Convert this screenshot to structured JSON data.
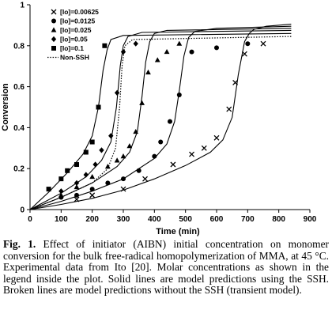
{
  "chart_data": {
    "type": "scatter",
    "title": "",
    "xlabel": "Time (min)",
    "ylabel": "Conversion",
    "xlim": [
      0,
      900
    ],
    "ylim": [
      0,
      1
    ],
    "xticks": [
      0,
      100,
      200,
      300,
      400,
      500,
      600,
      700,
      800,
      900
    ],
    "yticks": [
      0,
      0.2,
      0.4,
      0.6,
      0.8,
      1
    ],
    "ytick_labels": [
      "0",
      "0.2",
      "0.4",
      "0.6",
      "0.8",
      "1"
    ],
    "grid": false,
    "legend_position": "top-left",
    "series": [
      {
        "name": "[Io]=0.00625",
        "marker": "x",
        "points": [
          [
            150,
            0.05
          ],
          [
            200,
            0.07
          ],
          [
            300,
            0.1
          ],
          [
            370,
            0.15
          ],
          [
            460,
            0.22
          ],
          [
            520,
            0.27
          ],
          [
            560,
            0.3
          ],
          [
            600,
            0.35
          ],
          [
            640,
            0.49
          ],
          [
            660,
            0.62
          ],
          [
            690,
            0.76
          ],
          [
            750,
            0.81
          ]
        ]
      },
      {
        "name": "[Io]=0.0125",
        "marker": "circle",
        "points": [
          [
            100,
            0.06
          ],
          [
            150,
            0.07
          ],
          [
            200,
            0.1
          ],
          [
            250,
            0.13
          ],
          [
            300,
            0.15
          ],
          [
            350,
            0.19
          ],
          [
            400,
            0.26
          ],
          [
            420,
            0.33
          ],
          [
            450,
            0.43
          ],
          [
            480,
            0.56
          ],
          [
            520,
            0.77
          ],
          [
            600,
            0.79
          ],
          [
            700,
            0.81
          ]
        ]
      },
      {
        "name": "[Io]=0.025",
        "marker": "triangle",
        "points": [
          [
            100,
            0.07
          ],
          [
            150,
            0.11
          ],
          [
            200,
            0.16
          ],
          [
            250,
            0.21
          ],
          [
            280,
            0.24
          ],
          [
            300,
            0.26
          ],
          [
            320,
            0.31
          ],
          [
            340,
            0.38
          ],
          [
            360,
            0.52
          ],
          [
            380,
            0.67
          ],
          [
            410,
            0.73
          ],
          [
            440,
            0.77
          ],
          [
            480,
            0.81
          ]
        ]
      },
      {
        "name": "[Io]=0.05",
        "marker": "diamond",
        "points": [
          [
            100,
            0.09
          ],
          [
            150,
            0.13
          ],
          [
            180,
            0.17
          ],
          [
            210,
            0.22
          ],
          [
            230,
            0.29
          ],
          [
            260,
            0.36
          ],
          [
            280,
            0.57
          ],
          [
            300,
            0.77
          ],
          [
            340,
            0.81
          ]
        ]
      },
      {
        "name": "[Io]=0.1",
        "marker": "square",
        "points": [
          [
            60,
            0.1
          ],
          [
            100,
            0.15
          ],
          [
            120,
            0.19
          ],
          [
            150,
            0.22
          ],
          [
            180,
            0.28
          ],
          [
            200,
            0.33
          ],
          [
            220,
            0.5
          ],
          [
            240,
            0.8
          ]
        ]
      }
    ],
    "model_curves": [
      {
        "style": "solid",
        "points": [
          [
            0,
            0
          ],
          [
            100,
            0.025
          ],
          [
            200,
            0.055
          ],
          [
            300,
            0.095
          ],
          [
            400,
            0.15
          ],
          [
            500,
            0.215
          ],
          [
            580,
            0.28
          ],
          [
            620,
            0.34
          ],
          [
            650,
            0.45
          ],
          [
            670,
            0.66
          ],
          [
            690,
            0.82
          ],
          [
            705,
            0.86
          ],
          [
            720,
            0.88
          ],
          [
            760,
            0.895
          ],
          [
            840,
            0.905
          ]
        ]
      },
      {
        "style": "solid",
        "points": [
          [
            0,
            0
          ],
          [
            100,
            0.04
          ],
          [
            200,
            0.09
          ],
          [
            300,
            0.15
          ],
          [
            400,
            0.25
          ],
          [
            440,
            0.32
          ],
          [
            465,
            0.43
          ],
          [
            480,
            0.58
          ],
          [
            495,
            0.75
          ],
          [
            510,
            0.84
          ],
          [
            530,
            0.87
          ],
          [
            600,
            0.885
          ],
          [
            840,
            0.895
          ]
        ]
      },
      {
        "style": "solid",
        "points": [
          [
            0,
            0
          ],
          [
            100,
            0.06
          ],
          [
            200,
            0.13
          ],
          [
            280,
            0.21
          ],
          [
            320,
            0.28
          ],
          [
            345,
            0.38
          ],
          [
            360,
            0.55
          ],
          [
            372,
            0.72
          ],
          [
            385,
            0.82
          ],
          [
            400,
            0.86
          ],
          [
            440,
            0.875
          ],
          [
            840,
            0.885
          ]
        ]
      },
      {
        "style": "solid",
        "points": [
          [
            0,
            0
          ],
          [
            100,
            0.08
          ],
          [
            180,
            0.16
          ],
          [
            230,
            0.24
          ],
          [
            260,
            0.33
          ],
          [
            278,
            0.5
          ],
          [
            290,
            0.7
          ],
          [
            300,
            0.8
          ],
          [
            315,
            0.845
          ],
          [
            360,
            0.865
          ],
          [
            840,
            0.875
          ]
        ]
      },
      {
        "style": "solid",
        "points": [
          [
            0,
            0
          ],
          [
            60,
            0.085
          ],
          [
            120,
            0.18
          ],
          [
            170,
            0.27
          ],
          [
            200,
            0.36
          ],
          [
            220,
            0.5
          ],
          [
            235,
            0.68
          ],
          [
            248,
            0.78
          ],
          [
            260,
            0.83
          ],
          [
            300,
            0.85
          ],
          [
            840,
            0.86
          ]
        ]
      },
      {
        "style": "dotted",
        "points": [
          [
            0,
            0
          ],
          [
            100,
            0.06
          ],
          [
            200,
            0.13
          ],
          [
            250,
            0.2
          ],
          [
            275,
            0.3
          ],
          [
            288,
            0.5
          ],
          [
            296,
            0.7
          ],
          [
            305,
            0.8
          ],
          [
            330,
            0.83
          ],
          [
            840,
            0.845
          ]
        ]
      }
    ]
  },
  "legend": {
    "entries": [
      "[Io]=0.00625",
      "[Io]=0.0125",
      "[Io]=0.025",
      "[Io]=0.05",
      "[Io]=0.1",
      "Non-SSH"
    ]
  },
  "caption": {
    "label": "Fig. 1.",
    "text": " Effect of initiator (AIBN) initial concentration on monomer conversion for the bulk free-radical homopolymerization of MMA, at 45 °C. Experimental data from Ito [20]. Molar concentrations as shown in the legend inside the plot. Solid lines are model predictions using the SSH. Broken lines are model predictions without the SSH (transient model)."
  }
}
